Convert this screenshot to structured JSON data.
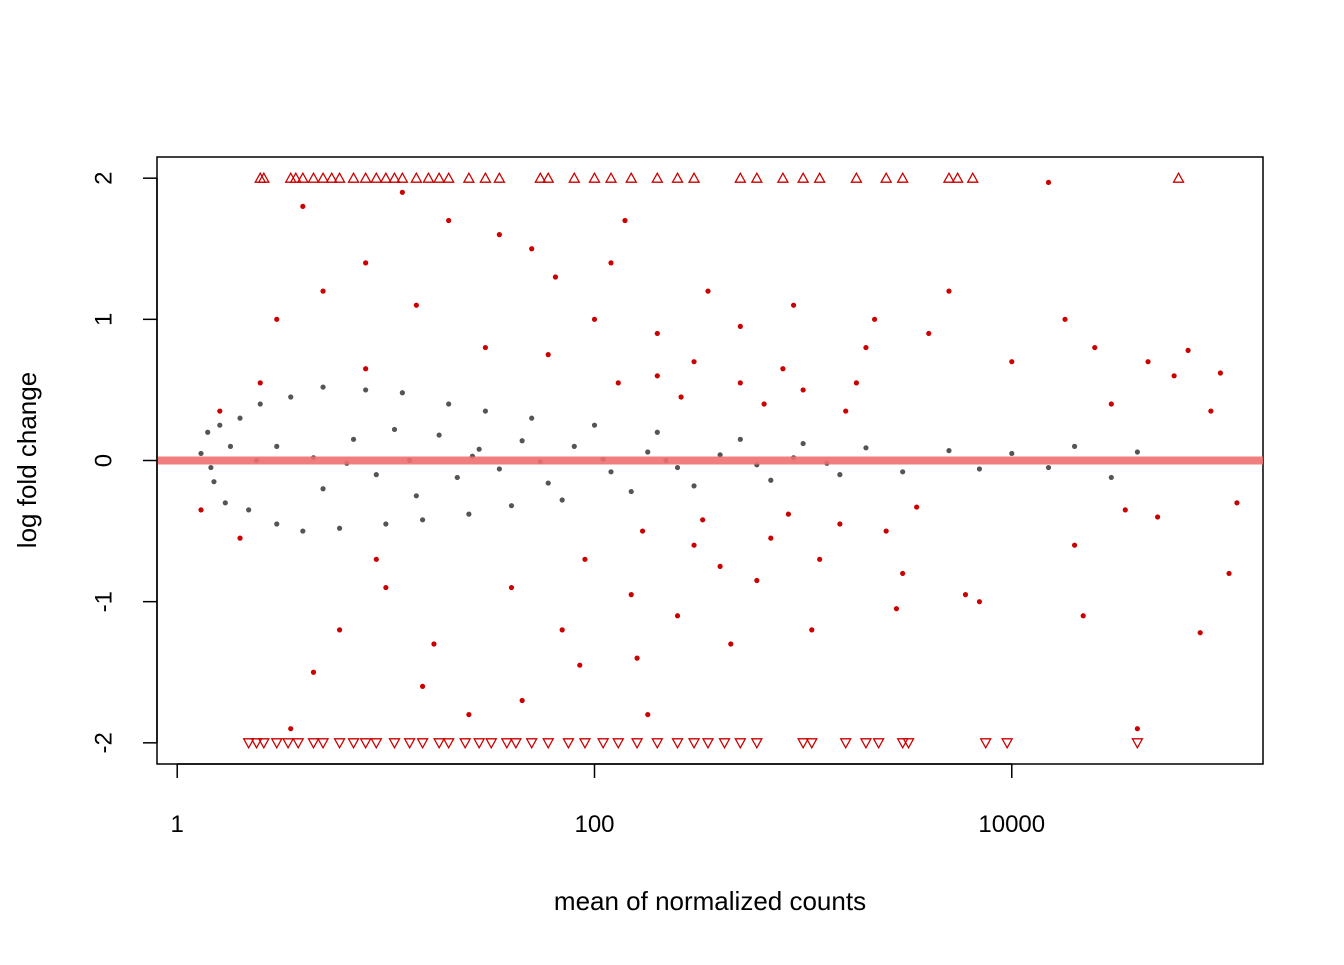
{
  "chart_data": {
    "type": "scatter",
    "title": "",
    "xlabel": "mean of normalized counts",
    "ylabel": "log fold change",
    "x_scale": "log10",
    "xlim": [
      0.8,
      160000
    ],
    "ylim": [
      -2.15,
      2.15
    ],
    "grid": false,
    "legend": "none",
    "x_ticks": [
      {
        "value": 1,
        "label": "1"
      },
      {
        "value": 100,
        "label": "100"
      },
      {
        "value": 10000,
        "label": "10000"
      }
    ],
    "y_ticks": [
      {
        "value": -2,
        "label": "-2"
      },
      {
        "value": -1,
        "label": "-1"
      },
      {
        "value": 0,
        "label": "0"
      },
      {
        "value": 1,
        "label": "1"
      },
      {
        "value": 2,
        "label": "2"
      }
    ],
    "reference_line": {
      "y": 0,
      "color": "#f07070"
    },
    "colors": {
      "not_significant": "#555555",
      "significant": "#cc0000",
      "out_of_range": "#cc0000"
    },
    "series": [
      {
        "name": "",
        "color": "#555555",
        "points": [
          [
            1.4,
            0.2
          ],
          [
            1.5,
            -0.15
          ],
          [
            1.6,
            0.25
          ],
          [
            1.7,
            -0.3
          ],
          [
            1.8,
            0.1
          ],
          [
            2.0,
            0.3
          ],
          [
            2.2,
            -0.35
          ],
          [
            2.5,
            0.4
          ],
          [
            3.0,
            -0.45
          ],
          [
            3.5,
            0.45
          ],
          [
            4.0,
            -0.5
          ],
          [
            5.0,
            0.52
          ],
          [
            6.0,
            -0.48
          ],
          [
            8.0,
            0.5
          ],
          [
            10,
            -0.45
          ],
          [
            12,
            0.48
          ],
          [
            15,
            -0.42
          ],
          [
            20,
            0.4
          ],
          [
            25,
            -0.38
          ],
          [
            30,
            0.35
          ],
          [
            40,
            -0.32
          ],
          [
            50,
            0.3
          ],
          [
            70,
            -0.28
          ],
          [
            100,
            0.25
          ],
          [
            150,
            -0.22
          ],
          [
            200,
            0.2
          ],
          [
            300,
            -0.18
          ],
          [
            500,
            0.15
          ],
          [
            700,
            -0.14
          ],
          [
            1000,
            0.12
          ],
          [
            1500,
            -0.1
          ],
          [
            2000,
            0.09
          ],
          [
            3000,
            -0.08
          ],
          [
            5000,
            0.07
          ],
          [
            7000,
            -0.06
          ],
          [
            10000,
            0.05
          ],
          [
            15000,
            -0.05
          ],
          [
            20000,
            0.1
          ],
          [
            30000,
            -0.12
          ],
          [
            40000,
            0.06
          ],
          [
            3,
            0.1
          ],
          [
            5,
            -0.2
          ],
          [
            7,
            0.15
          ],
          [
            9,
            -0.1
          ],
          [
            11,
            0.22
          ],
          [
            14,
            -0.25
          ],
          [
            18,
            0.18
          ],
          [
            22,
            -0.12
          ],
          [
            28,
            0.08
          ],
          [
            35,
            -0.06
          ],
          [
            45,
            0.14
          ],
          [
            60,
            -0.16
          ],
          [
            80,
            0.1
          ],
          [
            120,
            -0.08
          ],
          [
            180,
            0.06
          ],
          [
            250,
            -0.05
          ],
          [
            400,
            0.04
          ],
          [
            600,
            -0.03
          ],
          [
            900,
            0.02
          ],
          [
            1300,
            -0.02
          ],
          [
            1.3,
            0.05
          ],
          [
            1.45,
            -0.05
          ],
          [
            2.4,
            0.0
          ],
          [
            4.5,
            0.02
          ],
          [
            6.5,
            -0.02
          ],
          [
            13,
            0.0
          ],
          [
            26,
            0.03
          ],
          [
            55,
            -0.01
          ],
          [
            110,
            0.01
          ],
          [
            220,
            0.0
          ]
        ]
      },
      {
        "name": "",
        "color": "#cc0000",
        "points": [
          [
            1.3,
            -0.35
          ],
          [
            1.6,
            0.35
          ],
          [
            2.0,
            -0.55
          ],
          [
            2.5,
            0.55
          ],
          [
            3.0,
            1.0
          ],
          [
            3.5,
            -1.9
          ],
          [
            4.0,
            1.8
          ],
          [
            4.5,
            -1.5
          ],
          [
            5.0,
            1.2
          ],
          [
            6.0,
            -1.2
          ],
          [
            8.0,
            1.4
          ],
          [
            10,
            -0.9
          ],
          [
            12,
            1.9
          ],
          [
            15,
            -1.6
          ],
          [
            20,
            1.7
          ],
          [
            25,
            -1.8
          ],
          [
            30,
            0.8
          ],
          [
            40,
            -0.9
          ],
          [
            50,
            1.5
          ],
          [
            70,
            -1.2
          ],
          [
            100,
            1.0
          ],
          [
            150,
            -0.95
          ],
          [
            200,
            0.6
          ],
          [
            300,
            -0.6
          ],
          [
            500,
            0.55
          ],
          [
            700,
            -0.55
          ],
          [
            1000,
            0.5
          ],
          [
            1500,
            -0.45
          ],
          [
            2000,
            0.8
          ],
          [
            3000,
            -0.8
          ],
          [
            5000,
            1.2
          ],
          [
            7000,
            -1.0
          ],
          [
            10000,
            0.7
          ],
          [
            15000,
            1.97
          ],
          [
            20000,
            -0.6
          ],
          [
            30000,
            0.4
          ],
          [
            40000,
            -1.9
          ],
          [
            60000,
            0.6
          ],
          [
            100000,
            0.62
          ],
          [
            120000,
            -0.3
          ],
          [
            200,
            0.9
          ],
          [
            250,
            -1.1
          ],
          [
            300,
            0.7
          ],
          [
            400,
            -0.75
          ],
          [
            500,
            0.95
          ],
          [
            600,
            -0.85
          ],
          [
            800,
            0.65
          ],
          [
            1200,
            -0.7
          ],
          [
            1800,
            0.55
          ],
          [
            2500,
            -0.5
          ],
          [
            120,
            1.4
          ],
          [
            160,
            -1.4
          ],
          [
            350,
            1.2
          ],
          [
            450,
            -1.3
          ],
          [
            900,
            1.1
          ],
          [
            1100,
            -1.2
          ],
          [
            2200,
            1.0
          ],
          [
            2800,
            -1.05
          ],
          [
            4000,
            0.9
          ],
          [
            6000,
            -0.95
          ],
          [
            60,
            0.75
          ],
          [
            90,
            -0.7
          ],
          [
            130,
            0.55
          ],
          [
            170,
            -0.5
          ],
          [
            260,
            0.45
          ],
          [
            330,
            -0.42
          ],
          [
            650,
            0.4
          ],
          [
            850,
            -0.38
          ],
          [
            1600,
            0.35
          ],
          [
            3500,
            -0.33
          ],
          [
            8,
            0.65
          ],
          [
            9,
            -0.7
          ],
          [
            14,
            1.1
          ],
          [
            17,
            -1.3
          ],
          [
            35,
            1.6
          ],
          [
            45,
            -1.7
          ],
          [
            65,
            1.3
          ],
          [
            85,
            -1.45
          ],
          [
            140,
            1.7
          ],
          [
            180,
            -1.8
          ],
          [
            18000,
            1.0
          ],
          [
            22000,
            -1.1
          ],
          [
            25000,
            0.8
          ],
          [
            35000,
            -0.35
          ],
          [
            45000,
            0.7
          ],
          [
            50000,
            -0.4
          ],
          [
            70000,
            0.78
          ],
          [
            80000,
            -1.22
          ],
          [
            90000,
            0.35
          ],
          [
            110000,
            -0.8
          ]
        ]
      },
      {
        "name": "",
        "color": "#cc0000",
        "marker": "triangle-up",
        "points": [
          [
            2.5,
            2
          ],
          [
            2.6,
            2
          ],
          [
            3.5,
            2
          ],
          [
            3.7,
            2
          ],
          [
            4.0,
            2
          ],
          [
            4.5,
            2
          ],
          [
            5.0,
            2
          ],
          [
            5.5,
            2
          ],
          [
            6.0,
            2
          ],
          [
            7.0,
            2
          ],
          [
            8.0,
            2
          ],
          [
            9.0,
            2
          ],
          [
            10,
            2
          ],
          [
            11,
            2
          ],
          [
            12,
            2
          ],
          [
            14,
            2
          ],
          [
            16,
            2
          ],
          [
            18,
            2
          ],
          [
            20,
            2
          ],
          [
            25,
            2
          ],
          [
            30,
            2
          ],
          [
            35,
            2
          ],
          [
            55,
            2
          ],
          [
            60,
            2
          ],
          [
            80,
            2
          ],
          [
            100,
            2
          ],
          [
            120,
            2
          ],
          [
            150,
            2
          ],
          [
            200,
            2
          ],
          [
            250,
            2
          ],
          [
            300,
            2
          ],
          [
            500,
            2
          ],
          [
            600,
            2
          ],
          [
            800,
            2
          ],
          [
            1000,
            2
          ],
          [
            1200,
            2
          ],
          [
            1800,
            2
          ],
          [
            2500,
            2
          ],
          [
            3000,
            2
          ],
          [
            5000,
            2
          ],
          [
            5500,
            2
          ],
          [
            6500,
            2
          ],
          [
            63000,
            2
          ]
        ]
      },
      {
        "name": "",
        "color": "#cc0000",
        "marker": "triangle-down",
        "points": [
          [
            2.2,
            -2
          ],
          [
            2.4,
            -2
          ],
          [
            2.6,
            -2
          ],
          [
            3.0,
            -2
          ],
          [
            3.4,
            -2
          ],
          [
            3.8,
            -2
          ],
          [
            4.5,
            -2
          ],
          [
            5.0,
            -2
          ],
          [
            6.0,
            -2
          ],
          [
            7.0,
            -2
          ],
          [
            8.0,
            -2
          ],
          [
            9.0,
            -2
          ],
          [
            11,
            -2
          ],
          [
            13,
            -2
          ],
          [
            15,
            -2
          ],
          [
            18,
            -2
          ],
          [
            20,
            -2
          ],
          [
            24,
            -2
          ],
          [
            28,
            -2
          ],
          [
            32,
            -2
          ],
          [
            38,
            -2
          ],
          [
            42,
            -2
          ],
          [
            50,
            -2
          ],
          [
            60,
            -2
          ],
          [
            75,
            -2
          ],
          [
            90,
            -2
          ],
          [
            110,
            -2
          ],
          [
            130,
            -2
          ],
          [
            160,
            -2
          ],
          [
            200,
            -2
          ],
          [
            250,
            -2
          ],
          [
            300,
            -2
          ],
          [
            350,
            -2
          ],
          [
            420,
            -2
          ],
          [
            500,
            -2
          ],
          [
            600,
            -2
          ],
          [
            1000,
            -2
          ],
          [
            1100,
            -2
          ],
          [
            1600,
            -2
          ],
          [
            2000,
            -2
          ],
          [
            2300,
            -2
          ],
          [
            3000,
            -2
          ],
          [
            3200,
            -2
          ],
          [
            7500,
            -2
          ],
          [
            9500,
            -2
          ],
          [
            40000,
            -2
          ]
        ]
      }
    ]
  }
}
